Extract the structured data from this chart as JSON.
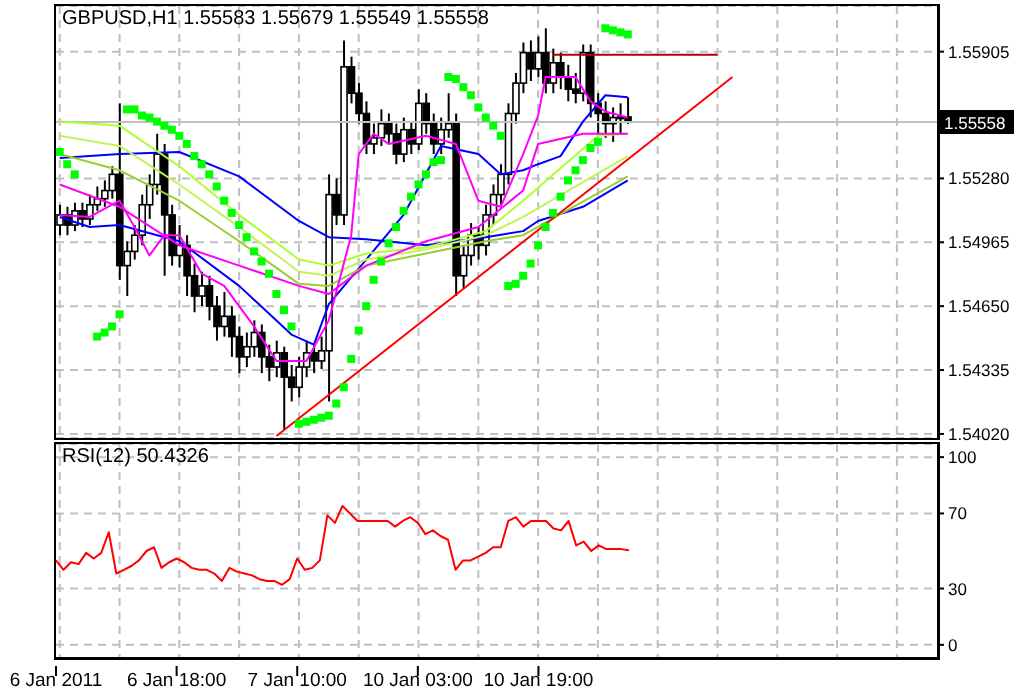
{
  "chart_data": [
    {
      "type": "candlestick",
      "title": "GBPUSD,H1 1.55583 1.55679 1.55549 1.55558",
      "color": "#000000",
      "categories": [
        null,
        null,
        null,
        null,
        null,
        null,
        null,
        null,
        null,
        null,
        null,
        null,
        null,
        null,
        null,
        null,
        null,
        null,
        null,
        null,
        null,
        null,
        null,
        null,
        null,
        null,
        null,
        null,
        null,
        null,
        null,
        null,
        null,
        null,
        null,
        null,
        null,
        null,
        null,
        null,
        null,
        null,
        null,
        null,
        null,
        null,
        null,
        null,
        null,
        null,
        null,
        null,
        null,
        null,
        null,
        null,
        null,
        null,
        null,
        null,
        null,
        null,
        null,
        null,
        null,
        null,
        null,
        null,
        null,
        null,
        null,
        null,
        null,
        null,
        null,
        null,
        null,
        null,
        null,
        null,
        null,
        null,
        null,
        null,
        null,
        null,
        null,
        null,
        null,
        null,
        null,
        null,
        null,
        null,
        null,
        null,
        null,
        null,
        null,
        null,
        null,
        null,
        null,
        null,
        null,
        null,
        null,
        null,
        null,
        null,
        null,
        null,
        null,
        null,
        null,
        null,
        null,
        null
      ],
      "ohlc": [
        [
          1.5505,
          1.5515,
          1.55,
          1.551
        ],
        [
          1.551,
          1.5514,
          1.55,
          1.5505
        ],
        [
          1.5505,
          1.5516,
          1.5502,
          1.5512
        ],
        [
          1.5512,
          1.5516,
          1.5504,
          1.5508
        ],
        [
          1.5508,
          1.552,
          1.5505,
          1.5515
        ],
        [
          1.5515,
          1.5524,
          1.5512,
          1.5518
        ],
        [
          1.5518,
          1.5527,
          1.5514,
          1.5522
        ],
        [
          1.5522,
          1.5534,
          1.5518,
          1.553
        ],
        [
          1.553,
          1.5565,
          1.5478,
          1.5485
        ],
        [
          1.5485,
          1.5497,
          1.547,
          1.5492
        ],
        [
          1.5492,
          1.5505,
          1.5488,
          1.55
        ],
        [
          1.55,
          1.552,
          1.5495,
          1.5515
        ],
        [
          1.5515,
          1.553,
          1.5508,
          1.5525
        ],
        [
          1.5525,
          1.555,
          1.552,
          1.554
        ],
        [
          1.554,
          1.5545,
          1.548,
          1.551
        ],
        [
          1.551,
          1.5515,
          1.5485,
          1.549
        ],
        [
          1.549,
          1.5505,
          1.5484,
          1.5495
        ],
        [
          1.5495,
          1.55,
          1.547,
          1.548
        ],
        [
          1.548,
          1.5486,
          1.5462,
          1.547
        ],
        [
          1.547,
          1.5482,
          1.5465,
          1.5475
        ],
        [
          1.5475,
          1.548,
          1.5458,
          1.5465
        ],
        [
          1.5465,
          1.547,
          1.5448,
          1.5455
        ],
        [
          1.5455,
          1.5472,
          1.545,
          1.546
        ],
        [
          1.546,
          1.5465,
          1.544,
          1.545
        ],
        [
          1.545,
          1.5455,
          1.5432,
          1.544
        ],
        [
          1.544,
          1.5452,
          1.5435,
          1.5445
        ],
        [
          1.5445,
          1.5458,
          1.544,
          1.5452
        ],
        [
          1.5452,
          1.5456,
          1.5432,
          1.544
        ],
        [
          1.544,
          1.5446,
          1.5428,
          1.5435
        ],
        [
          1.5435,
          1.5448,
          1.543,
          1.5442
        ],
        [
          1.5442,
          1.5445,
          1.5404,
          1.543
        ],
        [
          1.543,
          1.5436,
          1.5418,
          1.5425
        ],
        [
          1.5425,
          1.544,
          1.542,
          1.5435
        ],
        [
          1.5435,
          1.5448,
          1.543,
          1.5442
        ],
        [
          1.5442,
          1.5446,
          1.5432,
          1.5438
        ],
        [
          1.5438,
          1.545,
          1.5434,
          1.5443
        ],
        [
          1.5443,
          1.553,
          1.5418,
          1.552
        ],
        [
          1.552,
          1.5528,
          1.5505,
          1.551
        ],
        [
          1.551,
          1.5596,
          1.5505,
          1.5583
        ],
        [
          1.5583,
          1.5588,
          1.5565,
          1.557
        ],
        [
          1.557,
          1.5575,
          1.5555,
          1.556
        ],
        [
          1.556,
          1.5566,
          1.554,
          1.5545
        ],
        [
          1.5545,
          1.5555,
          1.554,
          1.5548
        ],
        [
          1.5548,
          1.5562,
          1.5544,
          1.5555
        ],
        [
          1.5555,
          1.556,
          1.5545,
          1.555
        ],
        [
          1.555,
          1.5555,
          1.5535,
          1.554
        ],
        [
          1.554,
          1.5558,
          1.5536,
          1.5552
        ],
        [
          1.5552,
          1.5556,
          1.554,
          1.5545
        ],
        [
          1.5545,
          1.5572,
          1.5542,
          1.5565
        ],
        [
          1.5565,
          1.557,
          1.555,
          1.5555
        ],
        [
          1.5555,
          1.556,
          1.554,
          1.5545
        ],
        [
          1.5545,
          1.5558,
          1.554,
          1.5552
        ],
        [
          1.5552,
          1.557,
          1.5548,
          1.5555
        ],
        [
          1.5555,
          1.556,
          1.547,
          1.548
        ],
        [
          1.548,
          1.5495,
          1.5474,
          1.549
        ],
        [
          1.549,
          1.5506,
          1.5485,
          1.55
        ],
        [
          1.55,
          1.5504,
          1.5488,
          1.5495
        ],
        [
          1.5495,
          1.5515,
          1.549,
          1.551
        ],
        [
          1.551,
          1.5525,
          1.5505,
          1.552
        ],
        [
          1.552,
          1.5535,
          1.5515,
          1.553
        ],
        [
          1.553,
          1.5565,
          1.5525,
          1.556
        ],
        [
          1.556,
          1.558,
          1.5555,
          1.5575
        ],
        [
          1.5575,
          1.5595,
          1.557,
          1.559
        ],
        [
          1.559,
          1.5596,
          1.5576,
          1.5582
        ],
        [
          1.5582,
          1.5598,
          1.5578,
          1.559
        ],
        [
          1.559,
          1.5602,
          1.557,
          1.5575
        ],
        [
          1.5575,
          1.5592,
          1.557,
          1.5585
        ],
        [
          1.5585,
          1.559,
          1.5572,
          1.5578
        ],
        [
          1.5578,
          1.5584,
          1.5566,
          1.5572
        ],
        [
          1.5572,
          1.558,
          1.5565,
          1.557
        ],
        [
          1.557,
          1.5594,
          1.5566,
          1.559
        ],
        [
          1.559,
          1.5594,
          1.5558,
          1.5565
        ],
        [
          1.5565,
          1.557,
          1.555,
          1.556
        ],
        [
          1.556,
          1.5566,
          1.5548,
          1.5555
        ],
        [
          1.5555,
          1.5563,
          1.5546,
          1.5558
        ],
        [
          1.5558,
          1.5565,
          1.555,
          1.55583
        ],
        [
          1.55583,
          1.55679,
          1.55549,
          1.55558
        ],
        null,
        null,
        null,
        null,
        null,
        null,
        null,
        null,
        null,
        null,
        null,
        null,
        null,
        null,
        null,
        null,
        null,
        null,
        null,
        null,
        null,
        null,
        null,
        null,
        null,
        null,
        null,
        null,
        null,
        null,
        null,
        null,
        null,
        null,
        null,
        null,
        null,
        null,
        null,
        null,
        null
      ],
      "series": [
        {
          "type": "line",
          "color": "#0000ff",
          "values": [
            1.5538,
            null,
            null,
            null,
            null,
            null,
            null,
            null,
            1.554,
            null,
            null,
            null,
            null,
            null,
            null,
            null,
            1.5541,
            null,
            null,
            null,
            null,
            null,
            null,
            null,
            1.5529,
            null,
            null,
            null,
            null,
            null,
            null,
            null,
            1.5507,
            null,
            null,
            null,
            1.5499,
            null,
            null,
            null,
            null,
            1.5498,
            null,
            null,
            null,
            null,
            null,
            null,
            null,
            1.5495,
            null,
            null,
            null,
            null,
            null,
            null,
            null,
            1.5499,
            null,
            null,
            null,
            null,
            1.5502,
            null,
            1.5507,
            null,
            null,
            null,
            null,
            null,
            1.5514,
            null,
            null,
            null,
            null,
            null,
            1.5527,
            null,
            null,
            null,
            null,
            null,
            null,
            null,
            null,
            null,
            null,
            null,
            null,
            null,
            null,
            null,
            null,
            null,
            null,
            null,
            null,
            null,
            null,
            null,
            null,
            null,
            null,
            null,
            null,
            null,
            null,
            null,
            null,
            null,
            null,
            null,
            null,
            null,
            null,
            null,
            null,
            null
          ]
        },
        {
          "type": "line",
          "color": "#0000ff",
          "values": [
            1.5509,
            null,
            null,
            null,
            1.5504,
            null,
            null,
            null,
            1.5505,
            null,
            null,
            null,
            null,
            null,
            null,
            null,
            1.5497,
            null,
            null,
            null,
            null,
            null,
            null,
            null,
            1.5475,
            null,
            null,
            null,
            null,
            null,
            null,
            1.5451,
            null,
            null,
            1.5446,
            null,
            1.5466,
            null,
            null,
            null,
            null,
            1.5488,
            null,
            null,
            null,
            null,
            1.551,
            null,
            null,
            null,
            null,
            1.5544,
            null,
            null,
            null,
            null,
            1.554,
            null,
            null,
            1.553,
            null,
            null,
            1.5532,
            null,
            1.5535,
            null,
            null,
            1.5539,
            null,
            null,
            1.5556,
            null,
            null,
            1.5569,
            null,
            null,
            1.5568,
            null,
            null,
            null,
            null,
            null,
            null,
            null,
            null,
            null,
            null,
            null,
            null,
            null,
            null,
            null,
            null,
            null,
            null,
            null,
            null,
            null,
            null,
            null,
            null,
            null,
            null,
            null,
            null,
            null,
            null,
            null,
            null,
            null,
            null,
            null,
            null,
            null,
            null,
            null,
            null,
            null
          ]
        },
        {
          "type": "line",
          "color": "#adff2f",
          "values": [
            1.5556,
            null,
            null,
            null,
            null,
            null,
            null,
            null,
            1.5554,
            null,
            null,
            null,
            null,
            null,
            null,
            null,
            1.5534,
            null,
            null,
            null,
            null,
            null,
            null,
            null,
            1.551,
            null,
            null,
            null,
            null,
            null,
            null,
            null,
            1.5488,
            null,
            null,
            null,
            1.5485,
            null,
            null,
            null,
            null,
            1.5491,
            null,
            null,
            null,
            null,
            null,
            null,
            null,
            1.5494,
            null,
            null,
            null,
            null,
            null,
            null,
            null,
            1.5502,
            null,
            null,
            null,
            null,
            1.5517,
            null,
            null,
            null,
            null,
            null,
            null,
            null,
            null,
            null,
            1.5549,
            null,
            null,
            null,
            1.555,
            null,
            null,
            null,
            null,
            null,
            null,
            null,
            null,
            null,
            null,
            null,
            null,
            null,
            null,
            null,
            null,
            null,
            null,
            null,
            null,
            null,
            null,
            null,
            null,
            null,
            null,
            null,
            null,
            null,
            null,
            null,
            null,
            null,
            null,
            null,
            null,
            null,
            null,
            null,
            null,
            null
          ]
        },
        {
          "type": "line",
          "color": "#c4f25a",
          "values": [
            1.5549,
            null,
            null,
            null,
            null,
            null,
            null,
            null,
            1.5544,
            null,
            null,
            null,
            null,
            null,
            null,
            null,
            1.5525,
            null,
            null,
            null,
            null,
            null,
            null,
            null,
            1.5504,
            null,
            null,
            null,
            null,
            null,
            null,
            null,
            1.5482,
            null,
            null,
            null,
            1.548,
            null,
            null,
            null,
            null,
            1.5488,
            null,
            null,
            null,
            null,
            null,
            null,
            null,
            1.5493,
            null,
            null,
            null,
            null,
            null,
            null,
            null,
            1.55,
            null,
            null,
            null,
            null,
            1.5509,
            null,
            null,
            null,
            null,
            null,
            null,
            null,
            null,
            null,
            null,
            null,
            null,
            null,
            1.5539,
            null,
            null,
            null,
            null,
            null,
            null,
            null,
            null,
            null,
            null,
            null,
            null,
            null,
            null,
            null,
            null,
            null,
            null,
            null,
            null,
            null,
            null,
            null,
            null,
            null,
            null,
            null,
            null,
            null,
            null,
            null,
            null,
            null,
            null,
            null,
            null,
            null,
            null,
            null,
            null,
            null
          ]
        },
        {
          "type": "line",
          "color": "#9acd32",
          "values": [
            1.554,
            null,
            null,
            null,
            null,
            null,
            null,
            null,
            1.5532,
            null,
            null,
            null,
            null,
            null,
            null,
            null,
            1.5517,
            null,
            null,
            null,
            null,
            null,
            null,
            null,
            1.5497,
            null,
            null,
            null,
            null,
            null,
            null,
            null,
            1.5476,
            null,
            null,
            null,
            1.5475,
            null,
            null,
            null,
            null,
            1.5485,
            null,
            null,
            null,
            null,
            null,
            null,
            null,
            1.5491,
            null,
            null,
            null,
            null,
            null,
            null,
            null,
            1.5497,
            null,
            null,
            null,
            null,
            1.55,
            null,
            null,
            null,
            null,
            null,
            null,
            null,
            null,
            null,
            null,
            null,
            null,
            null,
            1.5529,
            null,
            null,
            null,
            null,
            null,
            null,
            null,
            null,
            null,
            null,
            null,
            null,
            null,
            null,
            null,
            null,
            null,
            null,
            null,
            null,
            null,
            null,
            null,
            null,
            null,
            null,
            null,
            null,
            null,
            null,
            null,
            null,
            null,
            null,
            null,
            null,
            null,
            null,
            null,
            null,
            null
          ]
        },
        {
          "type": "line",
          "color": "#ff00ff",
          "values": [
            1.5525,
            null,
            null,
            null,
            null,
            null,
            null,
            null,
            1.5514,
            null,
            null,
            null,
            null,
            null,
            null,
            null,
            1.5495,
            null,
            null,
            null,
            null,
            null,
            null,
            null,
            1.5485,
            null,
            null,
            null,
            null,
            null,
            null,
            null,
            1.5475,
            null,
            null,
            null,
            1.5471,
            null,
            null,
            null,
            null,
            1.5485,
            null,
            null,
            null,
            null,
            null,
            null,
            null,
            1.5497,
            null,
            null,
            null,
            null,
            null,
            null,
            1.5504,
            null,
            null,
            null,
            null,
            null,
            1.5522,
            null,
            1.5545,
            null,
            null,
            null,
            null,
            null,
            1.555,
            null,
            null,
            null,
            null,
            null,
            1.555,
            null,
            null,
            null,
            null,
            null,
            null,
            null,
            null,
            null,
            null,
            null,
            null,
            null,
            null,
            null,
            null,
            null,
            null,
            null,
            null,
            null,
            null,
            null,
            null,
            null,
            null,
            null,
            null,
            null,
            null,
            null,
            null,
            null,
            null,
            null,
            null,
            null,
            null,
            null,
            null,
            null
          ]
        },
        {
          "type": "line",
          "color": "#ff00ff",
          "values": [
            1.551,
            null,
            null,
            null,
            1.5509,
            null,
            null,
            null,
            1.5517,
            null,
            1.5504,
            null,
            1.549,
            null,
            1.55,
            null,
            1.55,
            null,
            null,
            1.5481,
            null,
            null,
            1.5475,
            null,
            null,
            null,
            1.5455,
            null,
            null,
            1.5438,
            null,
            null,
            null,
            1.5438,
            null,
            null,
            1.5458,
            null,
            null,
            1.55,
            1.554,
            null,
            1.555,
            null,
            1.5545,
            null,
            null,
            null,
            null,
            1.5549,
            null,
            null,
            null,
            1.5545,
            null,
            null,
            1.5517,
            null,
            null,
            1.5514,
            null,
            null,
            1.554,
            null,
            1.5559,
            1.5578,
            null,
            null,
            null,
            1.5578,
            null,
            1.5566,
            null,
            1.5561,
            null,
            null,
            1.5558,
            null,
            null,
            null,
            null,
            null,
            null,
            null,
            null,
            null,
            null,
            null,
            null,
            null,
            null,
            null,
            null,
            null,
            null,
            null,
            null,
            null,
            null,
            null,
            null,
            null,
            null,
            null,
            null,
            null,
            null,
            null,
            null,
            null,
            null,
            null,
            null,
            null,
            null,
            null,
            null,
            null
          ]
        },
        {
          "type": "line",
          "color": "#ff0000",
          "values": [
            null,
            null,
            null,
            null,
            null,
            null,
            null,
            null,
            null,
            null,
            null,
            null,
            null,
            null,
            null,
            null,
            null,
            null,
            null,
            null,
            null,
            null,
            null,
            null,
            null,
            null,
            null,
            null,
            null,
            1.5401,
            null,
            null,
            null,
            null,
            null,
            null,
            null,
            null,
            null,
            null,
            null,
            null,
            null,
            null,
            null,
            null,
            null,
            null,
            null,
            null,
            null,
            null,
            null,
            null,
            null,
            null,
            null,
            null,
            null,
            null,
            null,
            null,
            null,
            null,
            null,
            null,
            null,
            null,
            null,
            null,
            null,
            null,
            null,
            null,
            null,
            null,
            null,
            null,
            null,
            null,
            null,
            null,
            null,
            null,
            null,
            null,
            null,
            null,
            null,
            null,
            1.5578,
            null,
            null,
            null,
            null,
            null,
            null,
            null,
            null,
            null,
            null,
            null,
            null,
            null,
            null,
            null,
            null,
            null,
            null,
            null,
            null,
            null,
            null,
            null,
            null,
            null,
            null,
            null
          ]
        },
        {
          "type": "line",
          "color": "#b00000",
          "values": [
            null,
            null,
            null,
            null,
            null,
            null,
            null,
            null,
            null,
            null,
            null,
            null,
            null,
            null,
            null,
            null,
            null,
            null,
            null,
            null,
            null,
            null,
            null,
            null,
            null,
            null,
            null,
            null,
            null,
            null,
            null,
            null,
            null,
            null,
            null,
            null,
            null,
            null,
            null,
            null,
            null,
            null,
            null,
            null,
            null,
            null,
            null,
            null,
            null,
            null,
            null,
            null,
            null,
            null,
            null,
            null,
            null,
            null,
            null,
            null,
            null,
            null,
            null,
            null,
            null,
            null,
            1.5589,
            null,
            null,
            null,
            null,
            null,
            null,
            null,
            null,
            null,
            null,
            null,
            null,
            null,
            null,
            null,
            null,
            null,
            null,
            null,
            null,
            null,
            1.5589,
            null,
            null,
            null,
            null,
            null,
            null,
            null,
            null,
            null,
            null,
            null,
            null,
            null,
            null,
            null,
            null,
            null,
            null,
            null,
            null,
            null,
            null,
            null,
            null,
            null,
            null,
            null,
            null,
            null
          ]
        },
        {
          "type": "scatter",
          "color": "#00ff00",
          "marker": "square",
          "values": [
            1.5541,
            1.5535,
            1.553,
            null,
            null,
            1.545,
            1.5452,
            1.5455,
            1.5461,
            1.5562,
            1.5562,
            1.5559,
            1.5558,
            1.5556,
            1.5554,
            1.5552,
            1.5549,
            1.5545,
            1.5539,
            1.5535,
            1.553,
            1.5524,
            1.5517,
            1.5511,
            1.5505,
            1.5499,
            1.5492,
            1.5487,
            1.5481,
            1.5471,
            1.5463,
            1.5455,
            1.5407,
            1.5408,
            1.5409,
            1.541,
            1.5411,
            1.5417,
            1.5425,
            1.5439,
            1.5453,
            1.5465,
            1.5478,
            1.5487,
            1.5496,
            1.5504,
            1.5512,
            1.5519,
            1.5525,
            1.553,
            1.5536,
            1.5537,
            1.5578,
            1.5577,
            1.5573,
            1.5569,
            1.5563,
            1.5558,
            1.5554,
            1.5549,
            1.5475,
            1.5476,
            1.548,
            1.5486,
            1.5495,
            1.5504,
            1.5511,
            1.5519,
            1.5527,
            1.5532,
            1.5537,
            1.5543,
            1.5546,
            1.5602,
            1.5601,
            1.56,
            1.5599,
            null,
            null,
            null,
            null,
            null,
            null,
            null,
            null,
            null,
            null,
            null,
            null,
            null,
            null,
            null,
            null,
            null,
            null,
            null,
            null,
            null,
            null,
            null,
            null,
            null,
            null,
            null,
            null,
            null,
            null,
            null,
            null,
            null,
            null,
            null,
            null,
            null,
            null,
            null,
            null,
            null
          ]
        }
      ],
      "ylim": [
        1.54,
        1.5613
      ],
      "yticks": [
        {
          "value": 1.5402,
          "label": "1.54020"
        },
        {
          "value": 1.54335,
          "label": "1.54335"
        },
        {
          "value": 1.5465,
          "label": "1.54650"
        },
        {
          "value": 1.54965,
          "label": "1.54965"
        },
        {
          "value": 1.5528,
          "label": "1.55280"
        },
        {
          "value": 1.55905,
          "label": "1.55905"
        }
      ],
      "ref_lines": [
        {
          "axis": "y",
          "value": 1.55558,
          "label": "1.55558",
          "color": "#c0c0c0"
        }
      ],
      "grid": true,
      "tick_labels": "y"
    },
    {
      "type": "line",
      "title": "RSI(12) 50.4326",
      "color": "#ff0000",
      "categories": [
        "6 Jan 2011",
        null,
        null,
        null,
        null,
        null,
        null,
        null,
        null,
        null,
        null,
        null,
        null,
        null,
        null,
        null,
        "6 Jan 18:00",
        null,
        null,
        null,
        null,
        null,
        null,
        null,
        null,
        null,
        null,
        null,
        null,
        null,
        null,
        null,
        "7 Jan 10:00",
        null,
        null,
        null,
        null,
        null,
        null,
        null,
        null,
        null,
        null,
        null,
        null,
        null,
        null,
        null,
        "10 Jan 03:00",
        null,
        null,
        null,
        null,
        null,
        null,
        null,
        null,
        null,
        null,
        null,
        null,
        null,
        null,
        null,
        "10 Jan 19:00",
        null,
        null,
        null,
        null,
        null,
        null,
        null,
        null,
        null,
        null,
        null,
        null,
        null,
        null,
        null,
        null,
        null,
        null,
        null,
        null,
        null,
        null,
        null,
        null,
        null,
        null,
        null,
        null,
        null,
        null,
        null,
        null,
        null,
        null,
        null,
        null,
        null,
        null,
        null,
        null,
        null,
        null,
        null,
        null,
        null,
        null,
        null,
        null,
        null,
        null,
        null,
        null,
        null
      ],
      "values": [
        45,
        40,
        44,
        43,
        49,
        46,
        49,
        60,
        38,
        40,
        42,
        45,
        50,
        52,
        41,
        44,
        46,
        44,
        41,
        40,
        40,
        38,
        34,
        41,
        39,
        38,
        37,
        35,
        34,
        34,
        32,
        35,
        46,
        40,
        41,
        45,
        69,
        65,
        74,
        70,
        66,
        66,
        66,
        66,
        66,
        63,
        66,
        68,
        65,
        59,
        61,
        58,
        56,
        40,
        45,
        45,
        47,
        49,
        52,
        52,
        66,
        68,
        63,
        66,
        66,
        66,
        62,
        61,
        66,
        53,
        55,
        50,
        53,
        51,
        51,
        51,
        50.4326,
        null,
        null,
        null,
        null,
        null,
        null,
        null,
        null,
        null,
        null,
        null,
        null,
        null,
        null,
        null,
        null,
        null,
        null,
        null,
        null,
        null,
        null,
        null,
        null,
        null,
        null,
        null,
        null,
        null,
        null,
        null,
        null,
        null,
        null,
        null,
        null,
        null,
        null,
        null,
        null,
        null
      ],
      "ylim": [
        -7,
        107
      ],
      "yticks": [
        0,
        30,
        70,
        100
      ],
      "grid": true
    }
  ]
}
